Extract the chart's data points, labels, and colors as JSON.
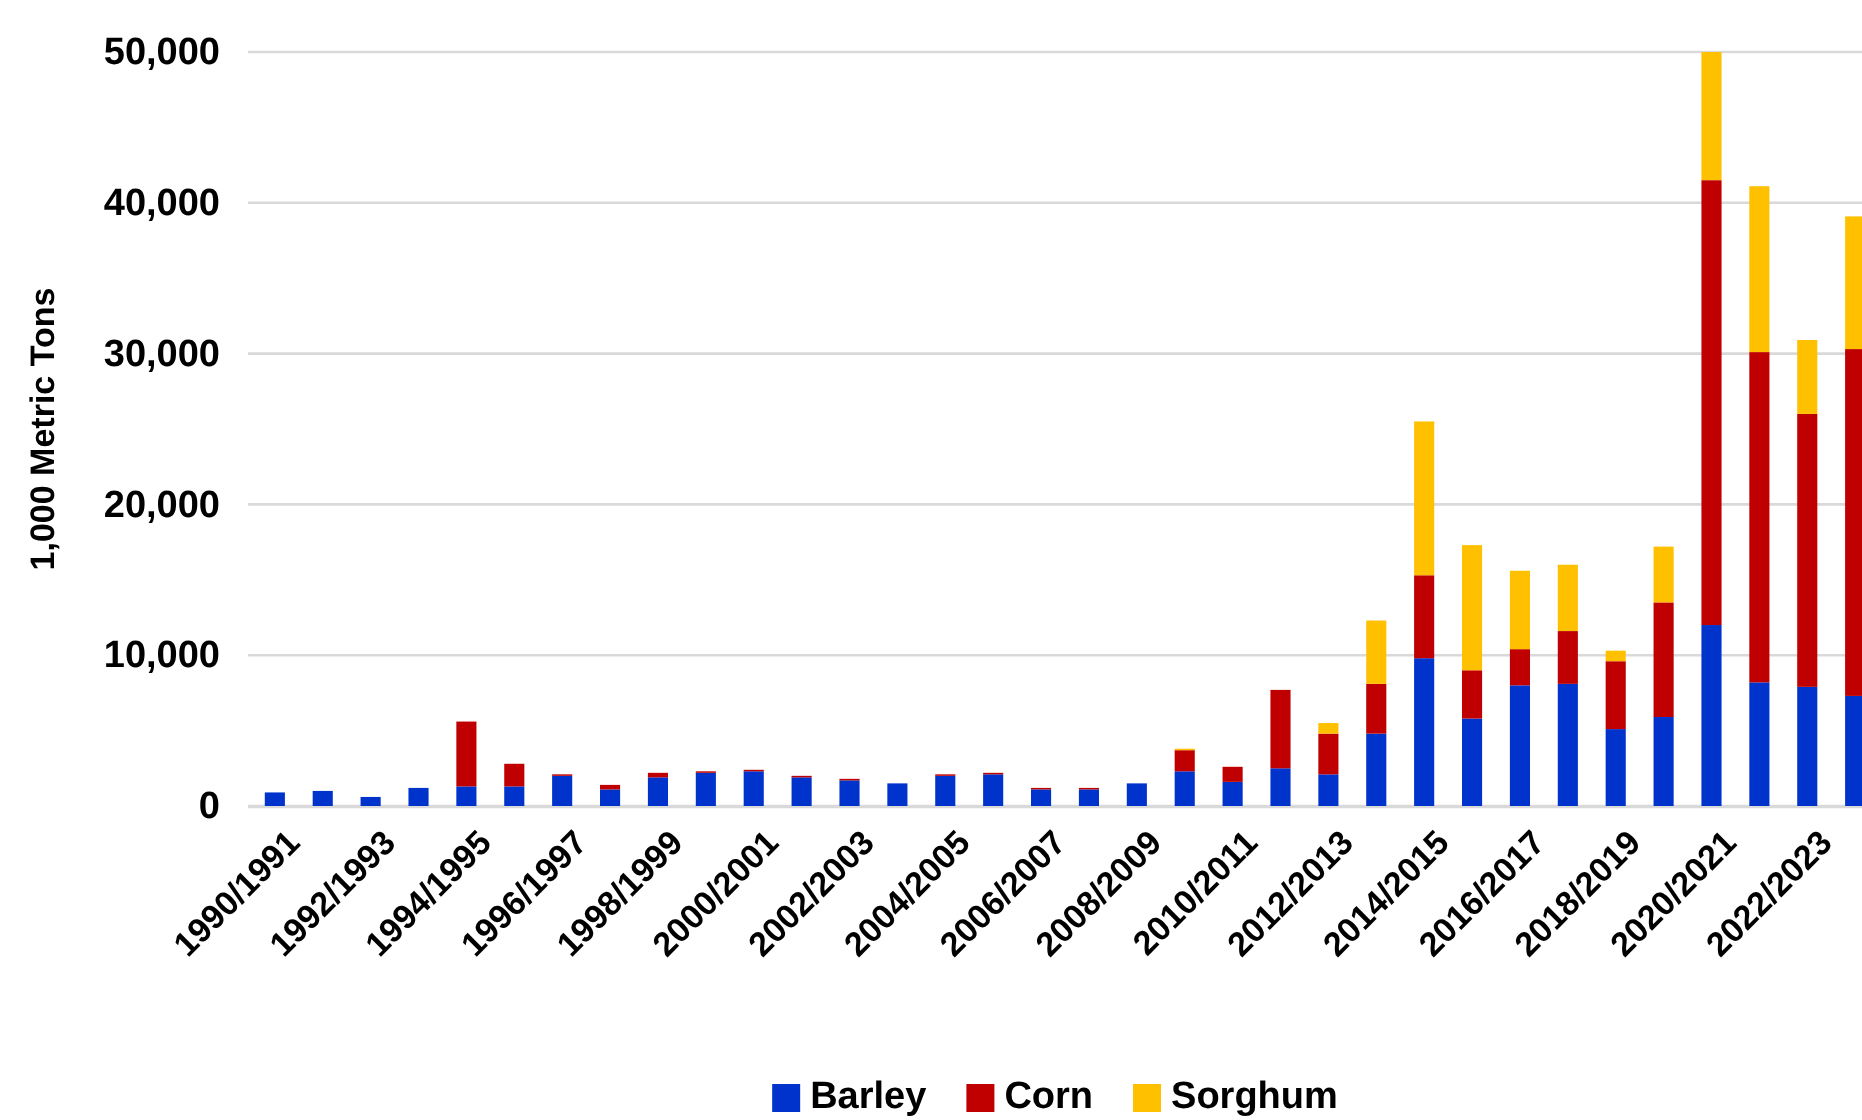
{
  "chart_data": {
    "type": "bar",
    "stacked": true,
    "ylabel": "1,000 Metric Tons",
    "categories": [
      "1990/1991",
      null,
      "1992/1993",
      null,
      "1994/1995",
      null,
      "1996/1997",
      null,
      "1998/1999",
      null,
      "2000/2001",
      null,
      "2002/2003",
      null,
      "2004/2005",
      null,
      "2006/2007",
      null,
      "2008/2009",
      null,
      "2010/2011",
      null,
      "2012/2013",
      null,
      "2014/2015",
      null,
      "2016/2017",
      null,
      "2018/2019",
      null,
      "2020/2021",
      null,
      "2022/2023",
      null
    ],
    "series": [
      {
        "name": "Barley",
        "color": "#0033cc",
        "values": [
          900,
          1000,
          600,
          1200,
          1300,
          1300,
          2000,
          1100,
          1900,
          2200,
          2300,
          1900,
          1700,
          1500,
          2000,
          2100,
          1100,
          1100,
          1500,
          2300,
          1600,
          2500,
          2100,
          4800,
          9800,
          5800,
          8000,
          8100,
          5100,
          5900,
          12000,
          8200,
          7900,
          7300
        ]
      },
      {
        "name": "Corn",
        "color": "#c00000",
        "values": [
          0,
          0,
          0,
          0,
          4300,
          1500,
          100,
          300,
          300,
          100,
          100,
          100,
          100,
          0,
          100,
          100,
          100,
          100,
          0,
          1400,
          1000,
          5200,
          2700,
          3300,
          5500,
          3200,
          2400,
          3500,
          4500,
          7600,
          29500,
          21900,
          18100,
          23000
        ]
      },
      {
        "name": "Sorghum",
        "color": "#ffc000",
        "values": [
          0,
          0,
          0,
          0,
          0,
          0,
          0,
          0,
          0,
          0,
          0,
          0,
          0,
          0,
          0,
          0,
          0,
          0,
          0,
          100,
          0,
          0,
          700,
          4200,
          10200,
          8300,
          5200,
          4400,
          700,
          3700,
          8500,
          11000,
          4900,
          8800
        ]
      }
    ],
    "ylim": [
      0,
      50000
    ],
    "yticks": [
      {
        "value": 0,
        "label": "0"
      },
      {
        "value": 10000,
        "label": "10,000"
      },
      {
        "value": 20000,
        "label": "20,000"
      },
      {
        "value": 30000,
        "label": "30,000"
      },
      {
        "value": 40000,
        "label": "40,000"
      },
      {
        "value": 50000,
        "label": "50,000"
      }
    ],
    "grid": "y",
    "legend": "bottom"
  }
}
